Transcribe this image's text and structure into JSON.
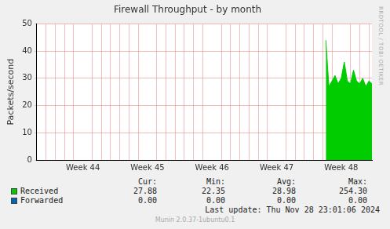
{
  "chart_data": {
    "type": "line",
    "title": "Firewall Throughput - by month",
    "y_label": "Packets/second",
    "categories": [
      null,
      null,
      null,
      null,
      null,
      null,
      null,
      null,
      null,
      null,
      null,
      null,
      null,
      null,
      null,
      "Week 44",
      null,
      null,
      null,
      null,
      null,
      null,
      null,
      null,
      null,
      null,
      null,
      null,
      null,
      null,
      null,
      null,
      null,
      null,
      null,
      null,
      "Week 45",
      null,
      null,
      null,
      null,
      null,
      null,
      null,
      null,
      null,
      null,
      null,
      null,
      null,
      null,
      null,
      null,
      null,
      null,
      null,
      null,
      "Week 46",
      null,
      null,
      null,
      null,
      null,
      null,
      null,
      null,
      null,
      null,
      null,
      null,
      null,
      null,
      null,
      null,
      null,
      null,
      null,
      null,
      "Week 47",
      null,
      null,
      null,
      null,
      null,
      null,
      null,
      null,
      null,
      null,
      null,
      null,
      null,
      null,
      null,
      null,
      null,
      null,
      null,
      null,
      "Week 48",
      null,
      null,
      null,
      null,
      null,
      null,
      null,
      null,
      null,
      null
    ],
    "series": [
      {
        "name": "Received",
        "color": "#00cc00",
        "type": "area",
        "values": [
          null,
          null,
          null,
          null,
          null,
          null,
          null,
          null,
          null,
          null,
          null,
          null,
          null,
          null,
          null,
          null,
          null,
          null,
          null,
          null,
          null,
          null,
          null,
          null,
          null,
          null,
          null,
          null,
          null,
          null,
          null,
          null,
          null,
          null,
          null,
          null,
          null,
          null,
          null,
          null,
          null,
          null,
          null,
          null,
          null,
          null,
          null,
          null,
          null,
          null,
          null,
          null,
          null,
          null,
          null,
          null,
          null,
          null,
          null,
          null,
          null,
          null,
          null,
          null,
          null,
          null,
          null,
          null,
          null,
          null,
          null,
          null,
          null,
          null,
          null,
          null,
          null,
          null,
          null,
          null,
          null,
          null,
          null,
          null,
          null,
          null,
          null,
          null,
          null,
          null,
          null,
          null,
          null,
          null,
          44,
          27,
          29,
          31,
          28,
          30,
          36,
          29,
          28,
          33,
          29,
          28,
          30,
          27,
          29,
          28
        ]
      },
      {
        "name": "Forwarded",
        "color": "#0066b3",
        "type": "line",
        "values": [
          null,
          null,
          null,
          null,
          null,
          null,
          null,
          null,
          null,
          null,
          null,
          null,
          null,
          null,
          null,
          null,
          null,
          null,
          null,
          null,
          null,
          null,
          null,
          null,
          null,
          null,
          null,
          null,
          null,
          null,
          null,
          null,
          null,
          null,
          null,
          null,
          null,
          null,
          null,
          null,
          null,
          null,
          null,
          null,
          null,
          null,
          null,
          null,
          null,
          null,
          null,
          null,
          null,
          null,
          null,
          null,
          null,
          null,
          null,
          null,
          null,
          null,
          null,
          null,
          null,
          null,
          null,
          null,
          null,
          null,
          null,
          null,
          null,
          null,
          null,
          null,
          null,
          null,
          null,
          null,
          null,
          null,
          null,
          null,
          null,
          null,
          null,
          null,
          null,
          null,
          null,
          null,
          null,
          null,
          0,
          0,
          0,
          0,
          0,
          0,
          0,
          0,
          0,
          0,
          0,
          0,
          0,
          0,
          0,
          0
        ]
      }
    ],
    "ylim": [
      0,
      50
    ],
    "yticks": [
      0,
      10,
      20,
      30,
      40,
      50
    ],
    "grid": true,
    "summary": {
      "columns": [
        "Cur:",
        "Min:",
        "Avg:",
        "Max:"
      ],
      "rows": [
        [
          "27.88",
          "22.35",
          "28.98",
          "254.30"
        ],
        [
          "0.00",
          "0.00",
          "0.00",
          "0.00"
        ]
      ]
    },
    "last_update": "Last update: Thu Nov 28 23:01:06 2024",
    "footer": "Munin 2.0.37-1ubuntu0.1",
    "side_text": "RRDTOOL / TOBI OETIKER"
  }
}
